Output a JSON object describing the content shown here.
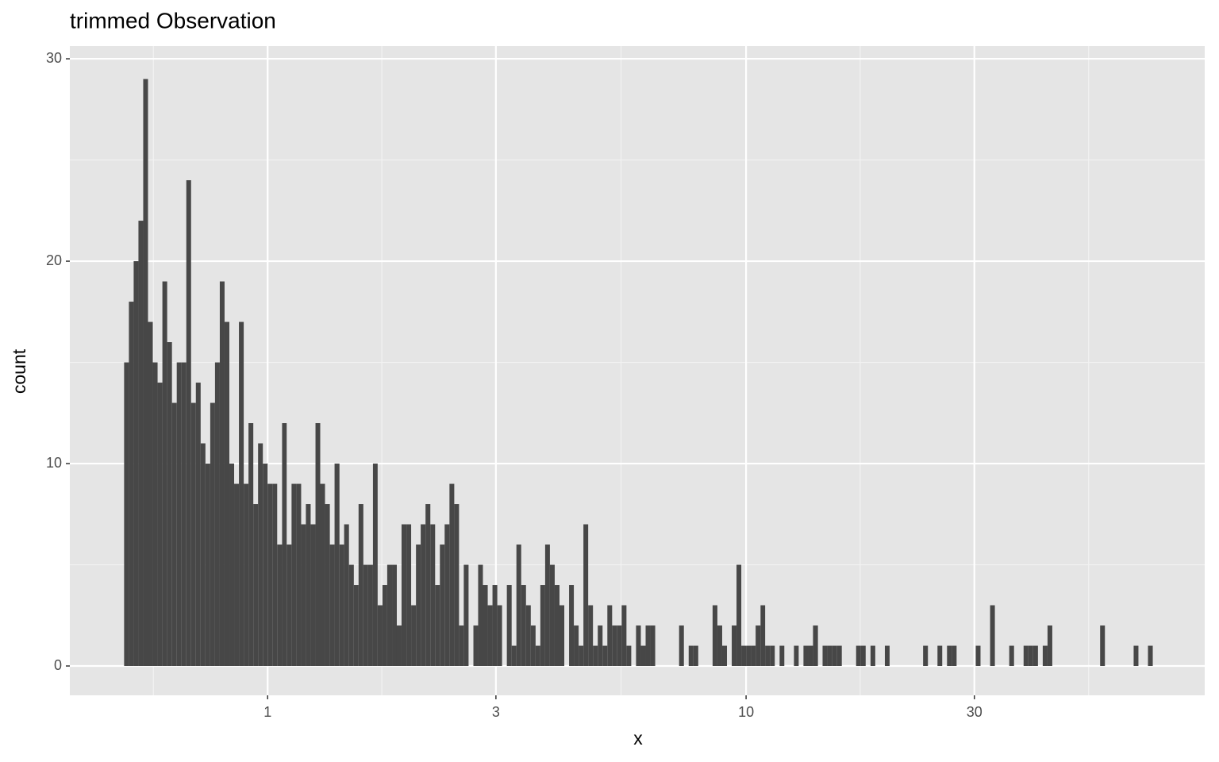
{
  "chart_data": {
    "type": "histogram",
    "title": "trimmed Observation",
    "x_label": "x",
    "y_label": "count",
    "xscale": "log",
    "color": "#474747",
    "grid": true,
    "xlim": [
      0.386,
      90.9
    ],
    "ylim": [
      -1.45,
      30.63
    ],
    "xticks": [
      1,
      3,
      10,
      30
    ],
    "xminor": [
      0.577,
      1.732,
      5.477,
      17.32,
      52
    ],
    "yticks": [
      0,
      10,
      20,
      30
    ],
    "yminor": [
      5,
      15,
      25
    ],
    "bins": [
      0.5012,
      0.5129,
      0.5248,
      0.537,
      0.5495,
      0.5623,
      0.5754,
      0.5888,
      0.6026,
      0.6166,
      0.631,
      0.6457,
      0.6607,
      0.6761,
      0.6918,
      0.7079,
      0.7244,
      0.7413,
      0.7586,
      0.7762,
      0.7943,
      0.8128,
      0.8318,
      0.8511,
      0.871,
      0.8913,
      0.912,
      0.9333,
      0.955,
      0.9772,
      1,
      1.023,
      1.047,
      1.072,
      1.096,
      1.122,
      1.148,
      1.175,
      1.202,
      1.23,
      1.259,
      1.288,
      1.318,
      1.349,
      1.38,
      1.413,
      1.445,
      1.479,
      1.514,
      1.549,
      1.585,
      1.622,
      1.66,
      1.698,
      1.738,
      1.778,
      1.82,
      1.862,
      1.905,
      1.95,
      1.995,
      2.042,
      2.089,
      2.138,
      2.188,
      2.239,
      2.291,
      2.344,
      2.399,
      2.455,
      2.512,
      2.57,
      2.63,
      2.692,
      2.754,
      2.818,
      2.884,
      2.951,
      3.02,
      3.09,
      3.162,
      3.236,
      3.311,
      3.388,
      3.467,
      3.548,
      3.631,
      3.715,
      3.802,
      3.89,
      3.981,
      4.074,
      4.169,
      4.266,
      4.365,
      4.467,
      4.571,
      4.677,
      4.786,
      4.898,
      5.012,
      5.129,
      5.248,
      5.37,
      5.495,
      5.623,
      5.754,
      5.888,
      6.026,
      6.166,
      6.31,
      6.457,
      6.607,
      6.761,
      6.918,
      7.079,
      7.244,
      7.413,
      7.586,
      7.762,
      7.943,
      8.128,
      8.318,
      8.511,
      8.71,
      8.913,
      9.12,
      9.333,
      9.55,
      9.772,
      10,
      10.23,
      10.47,
      10.72,
      10.96,
      11.22,
      11.48,
      11.75,
      12.02,
      12.3,
      12.59,
      12.88,
      13.18,
      13.49,
      13.8,
      14.13,
      14.45,
      14.79,
      15.14,
      15.49,
      15.85,
      16.22,
      16.6,
      16.98,
      17.38,
      17.78,
      18.2,
      18.62,
      19.05,
      19.5,
      19.95,
      20.42,
      20.89,
      21.38,
      21.88,
      22.39,
      22.91,
      23.44,
      23.99,
      24.55,
      25.12,
      25.7,
      26.3,
      26.92,
      27.54,
      28.18,
      28.84,
      29.51,
      30.2,
      30.9,
      31.62,
      32.36,
      33.11,
      33.88,
      34.67,
      35.48,
      36.31,
      37.15,
      38.02,
      38.9,
      39.81,
      40.74,
      41.69,
      42.66,
      43.65,
      44.67,
      45.71,
      46.77,
      47.86,
      48.98,
      50.12,
      51.29,
      52.48,
      53.7,
      54.95,
      56.23,
      57.54,
      58.88,
      60.26,
      61.66,
      63.1,
      64.57,
      66.07,
      67.61,
      69.18,
      70.79,
      72.44
    ],
    "values": [
      15,
      18,
      20,
      22,
      29,
      17,
      15,
      14,
      19,
      16,
      13,
      15,
      15,
      24,
      13,
      14,
      11,
      10,
      13,
      15,
      19,
      17,
      10,
      9,
      17,
      9,
      12,
      8,
      11,
      10,
      9,
      9,
      6,
      12,
      6,
      9,
      9,
      7,
      8,
      7,
      12,
      9,
      8,
      6,
      10,
      6,
      7,
      5,
      4,
      8,
      5,
      5,
      10,
      3,
      4,
      5,
      5,
      2,
      7,
      7,
      3,
      6,
      7,
      8,
      7,
      4,
      6,
      7,
      9,
      8,
      2,
      5,
      0,
      2,
      5,
      4,
      3,
      4,
      3,
      0,
      4,
      1,
      6,
      4,
      3,
      2,
      1,
      4,
      6,
      5,
      4,
      3,
      0,
      4,
      2,
      1,
      7,
      3,
      1,
      2,
      1,
      3,
      2,
      2,
      3,
      1,
      0,
      2,
      1,
      2,
      2,
      0,
      0,
      0,
      0,
      0,
      2,
      0,
      1,
      1,
      0,
      0,
      0,
      3,
      2,
      1,
      0,
      2,
      5,
      1,
      1,
      1,
      2,
      3,
      1,
      1,
      0,
      1,
      0,
      0,
      1,
      0,
      1,
      1,
      2,
      0,
      1,
      1,
      1,
      1,
      0,
      0,
      0,
      1,
      1,
      0,
      1,
      0,
      0,
      1,
      0,
      0,
      0,
      0,
      0,
      0,
      0,
      1,
      0,
      0,
      1,
      0,
      1,
      1,
      0,
      0,
      0,
      0,
      1,
      0,
      0,
      3,
      0,
      0,
      0,
      1,
      0,
      0,
      1,
      1,
      1,
      0,
      1,
      2,
      0,
      0,
      0,
      0,
      0,
      0,
      0,
      0,
      0,
      0,
      2,
      0,
      0,
      0,
      0,
      0,
      0,
      1,
      0,
      0,
      1,
      0
    ]
  }
}
